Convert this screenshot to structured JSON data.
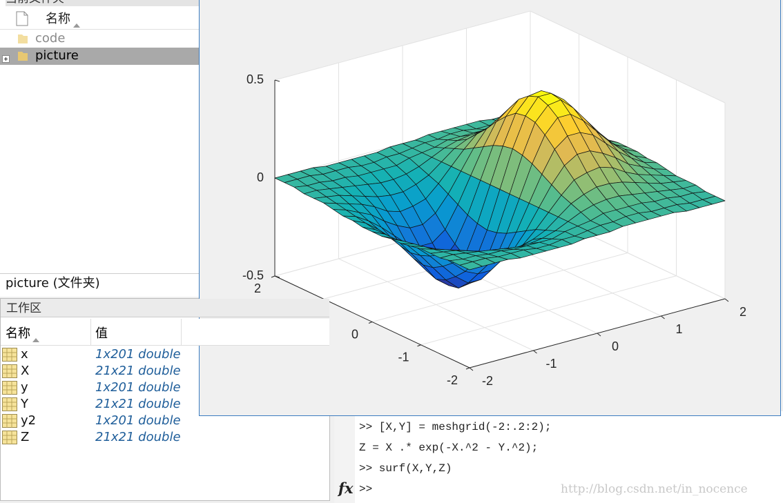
{
  "file_browser": {
    "title": "当前文件夹",
    "column": "名称",
    "items": [
      "code",
      "picture"
    ],
    "status": "picture (文件夹)"
  },
  "workspace": {
    "title": "工作区",
    "columns": [
      "名称",
      "值"
    ],
    "rows": [
      [
        "x",
        "1x201 double"
      ],
      [
        "X",
        "21x21 double"
      ],
      [
        "y",
        "1x201 double"
      ],
      [
        "Y",
        "21x21 double"
      ],
      [
        "y2",
        "1x201 double"
      ],
      [
        "Z",
        "21x21 double"
      ]
    ]
  },
  "command_window": {
    "lines": [
      ">> [X,Y] = meshgrid(-2:.2:2);",
      "Z = X .* exp(-X.^2 - Y.^2);",
      ">> surf(X,Y,Z)"
    ],
    "prompt_icon": "fx",
    "prompt": ">>"
  },
  "watermark": "http://blog.csdn.net/in_nocence",
  "chart_data": {
    "type": "surface",
    "colormap": "parula",
    "grid": true,
    "x": [
      -2,
      -1.8,
      -1.6,
      -1.4,
      -1.2,
      -1,
      -0.8,
      -0.6,
      -0.4,
      -0.2,
      0,
      0.2,
      0.4,
      0.6,
      0.8,
      1,
      1.2,
      1.4,
      1.6,
      1.8,
      2
    ],
    "y": [
      -2,
      -1.8,
      -1.6,
      -1.4,
      -1.2,
      -1,
      -0.8,
      -0.6,
      -0.4,
      -0.2,
      0,
      0.2,
      0.4,
      0.6,
      0.8,
      1,
      1.2,
      1.4,
      1.6,
      1.8,
      2
    ],
    "z": [
      [
        0,
        0,
        0,
        0,
        -0.01,
        -0.01,
        -0.01,
        -0.01,
        -0.01,
        0,
        0,
        0,
        0.01,
        0.01,
        0.01,
        0.01,
        0.01,
        0,
        0,
        0,
        0
      ],
      [
        0,
        0,
        0,
        -0.01,
        -0.01,
        -0.01,
        -0.02,
        -0.02,
        -0.01,
        -0.01,
        0,
        0.01,
        0.01,
        0.02,
        0.02,
        0.01,
        0.01,
        0.01,
        0,
        0,
        0
      ],
      [
        0,
        -0.01,
        -0.01,
        -0.02,
        -0.02,
        -0.03,
        -0.03,
        -0.03,
        -0.03,
        -0.01,
        0,
        0.01,
        0.03,
        0.03,
        0.03,
        0.03,
        0.02,
        0.02,
        0.01,
        0.01,
        0
      ],
      [
        -0.01,
        -0.01,
        -0.02,
        -0.03,
        -0.04,
        -0.05,
        -0.06,
        -0.06,
        -0.05,
        -0.03,
        0,
        0.03,
        0.05,
        0.06,
        0.06,
        0.05,
        0.04,
        0.03,
        0.02,
        0.01,
        0.01
      ],
      [
        -0.01,
        -0.02,
        -0.03,
        -0.05,
        -0.07,
        -0.09,
        -0.1,
        -0.1,
        -0.08,
        -0.05,
        0,
        0.05,
        0.08,
        0.1,
        0.1,
        0.09,
        0.07,
        0.05,
        0.03,
        0.02,
        0.01
      ],
      [
        -0.01,
        -0.03,
        -0.05,
        -0.07,
        -0.1,
        -0.14,
        -0.16,
        -0.15,
        -0.13,
        -0.07,
        0,
        0.07,
        0.13,
        0.15,
        0.16,
        0.14,
        0.1,
        0.07,
        0.05,
        0.03,
        0.01
      ],
      [
        -0.02,
        -0.04,
        -0.07,
        -0.1,
        -0.15,
        -0.19,
        -0.22,
        -0.22,
        -0.18,
        -0.1,
        0,
        0.1,
        0.18,
        0.22,
        0.22,
        0.19,
        0.15,
        0.1,
        0.07,
        0.04,
        0.02
      ],
      [
        -0.03,
        -0.05,
        -0.09,
        -0.14,
        -0.2,
        -0.26,
        -0.29,
        -0.29,
        -0.24,
        -0.13,
        0,
        0.13,
        0.24,
        0.29,
        0.29,
        0.26,
        0.2,
        0.14,
        0.09,
        0.05,
        0.03
      ],
      [
        -0.03,
        -0.06,
        -0.11,
        -0.17,
        -0.24,
        -0.31,
        -0.36,
        -0.36,
        -0.29,
        -0.16,
        0,
        0.16,
        0.29,
        0.36,
        0.36,
        0.31,
        0.24,
        0.17,
        0.11,
        0.06,
        0.03
      ],
      [
        -0.04,
        -0.07,
        -0.12,
        -0.19,
        -0.27,
        -0.35,
        -0.41,
        -0.4,
        -0.33,
        -0.18,
        0,
        0.18,
        0.33,
        0.4,
        0.41,
        0.35,
        0.27,
        0.19,
        0.12,
        0.07,
        0.04
      ],
      [
        -0.04,
        -0.07,
        -0.12,
        -0.2,
        -0.28,
        -0.37,
        -0.42,
        -0.42,
        -0.34,
        -0.19,
        0,
        0.19,
        0.34,
        0.42,
        0.42,
        0.37,
        0.28,
        0.2,
        0.12,
        0.07,
        0.04
      ],
      [
        -0.04,
        -0.07,
        -0.12,
        -0.19,
        -0.27,
        -0.35,
        -0.41,
        -0.4,
        -0.33,
        -0.18,
        0,
        0.18,
        0.33,
        0.4,
        0.41,
        0.35,
        0.27,
        0.19,
        0.12,
        0.07,
        0.04
      ],
      [
        -0.03,
        -0.06,
        -0.11,
        -0.17,
        -0.24,
        -0.31,
        -0.36,
        -0.36,
        -0.29,
        -0.16,
        0,
        0.16,
        0.29,
        0.36,
        0.36,
        0.31,
        0.24,
        0.17,
        0.11,
        0.06,
        0.03
      ],
      [
        -0.03,
        -0.05,
        -0.09,
        -0.14,
        -0.2,
        -0.26,
        -0.29,
        -0.29,
        -0.24,
        -0.13,
        0,
        0.13,
        0.24,
        0.29,
        0.29,
        0.26,
        0.2,
        0.14,
        0.09,
        0.05,
        0.03
      ],
      [
        -0.02,
        -0.04,
        -0.07,
        -0.1,
        -0.15,
        -0.19,
        -0.22,
        -0.22,
        -0.18,
        -0.1,
        0,
        0.1,
        0.18,
        0.22,
        0.22,
        0.19,
        0.15,
        0.1,
        0.07,
        0.04,
        0.02
      ],
      [
        -0.01,
        -0.03,
        -0.05,
        -0.07,
        -0.1,
        -0.14,
        -0.16,
        -0.15,
        -0.13,
        -0.07,
        0,
        0.07,
        0.13,
        0.15,
        0.16,
        0.14,
        0.1,
        0.07,
        0.05,
        0.03,
        0.01
      ],
      [
        -0.01,
        -0.02,
        -0.03,
        -0.05,
        -0.07,
        -0.09,
        -0.1,
        -0.1,
        -0.08,
        -0.05,
        0,
        0.05,
        0.08,
        0.1,
        0.1,
        0.09,
        0.07,
        0.05,
        0.03,
        0.02,
        0.01
      ],
      [
        -0.01,
        -0.01,
        -0.02,
        -0.03,
        -0.04,
        -0.05,
        -0.06,
        -0.06,
        -0.05,
        -0.03,
        0,
        0.03,
        0.05,
        0.06,
        0.06,
        0.05,
        0.04,
        0.03,
        0.02,
        0.01,
        0.01
      ],
      [
        0,
        -0.01,
        -0.01,
        -0.02,
        -0.02,
        -0.03,
        -0.03,
        -0.03,
        -0.03,
        -0.01,
        0,
        0.01,
        0.03,
        0.03,
        0.03,
        0.03,
        0.02,
        0.02,
        0.01,
        0.01,
        0
      ],
      [
        0,
        0,
        0,
        -0.01,
        -0.01,
        -0.01,
        -0.02,
        -0.02,
        -0.01,
        -0.01,
        0,
        0.01,
        0.01,
        0.02,
        0.02,
        0.01,
        0.01,
        0.01,
        0,
        0,
        0
      ],
      [
        0,
        0,
        0,
        0,
        -0.01,
        -0.01,
        -0.01,
        -0.01,
        -0.01,
        0,
        0,
        0,
        0.01,
        0.01,
        0.01,
        0.01,
        0.01,
        0,
        0,
        0,
        0
      ]
    ],
    "xlim": [
      -2,
      2
    ],
    "ylim": [
      -2,
      2
    ],
    "zlim": [
      -0.5,
      0.5
    ],
    "xticks": [
      -2,
      -1,
      0,
      1,
      2
    ],
    "yticks": [
      -2,
      -1,
      0,
      1,
      2
    ],
    "zticks": [
      -0.5,
      0,
      0.5
    ]
  }
}
